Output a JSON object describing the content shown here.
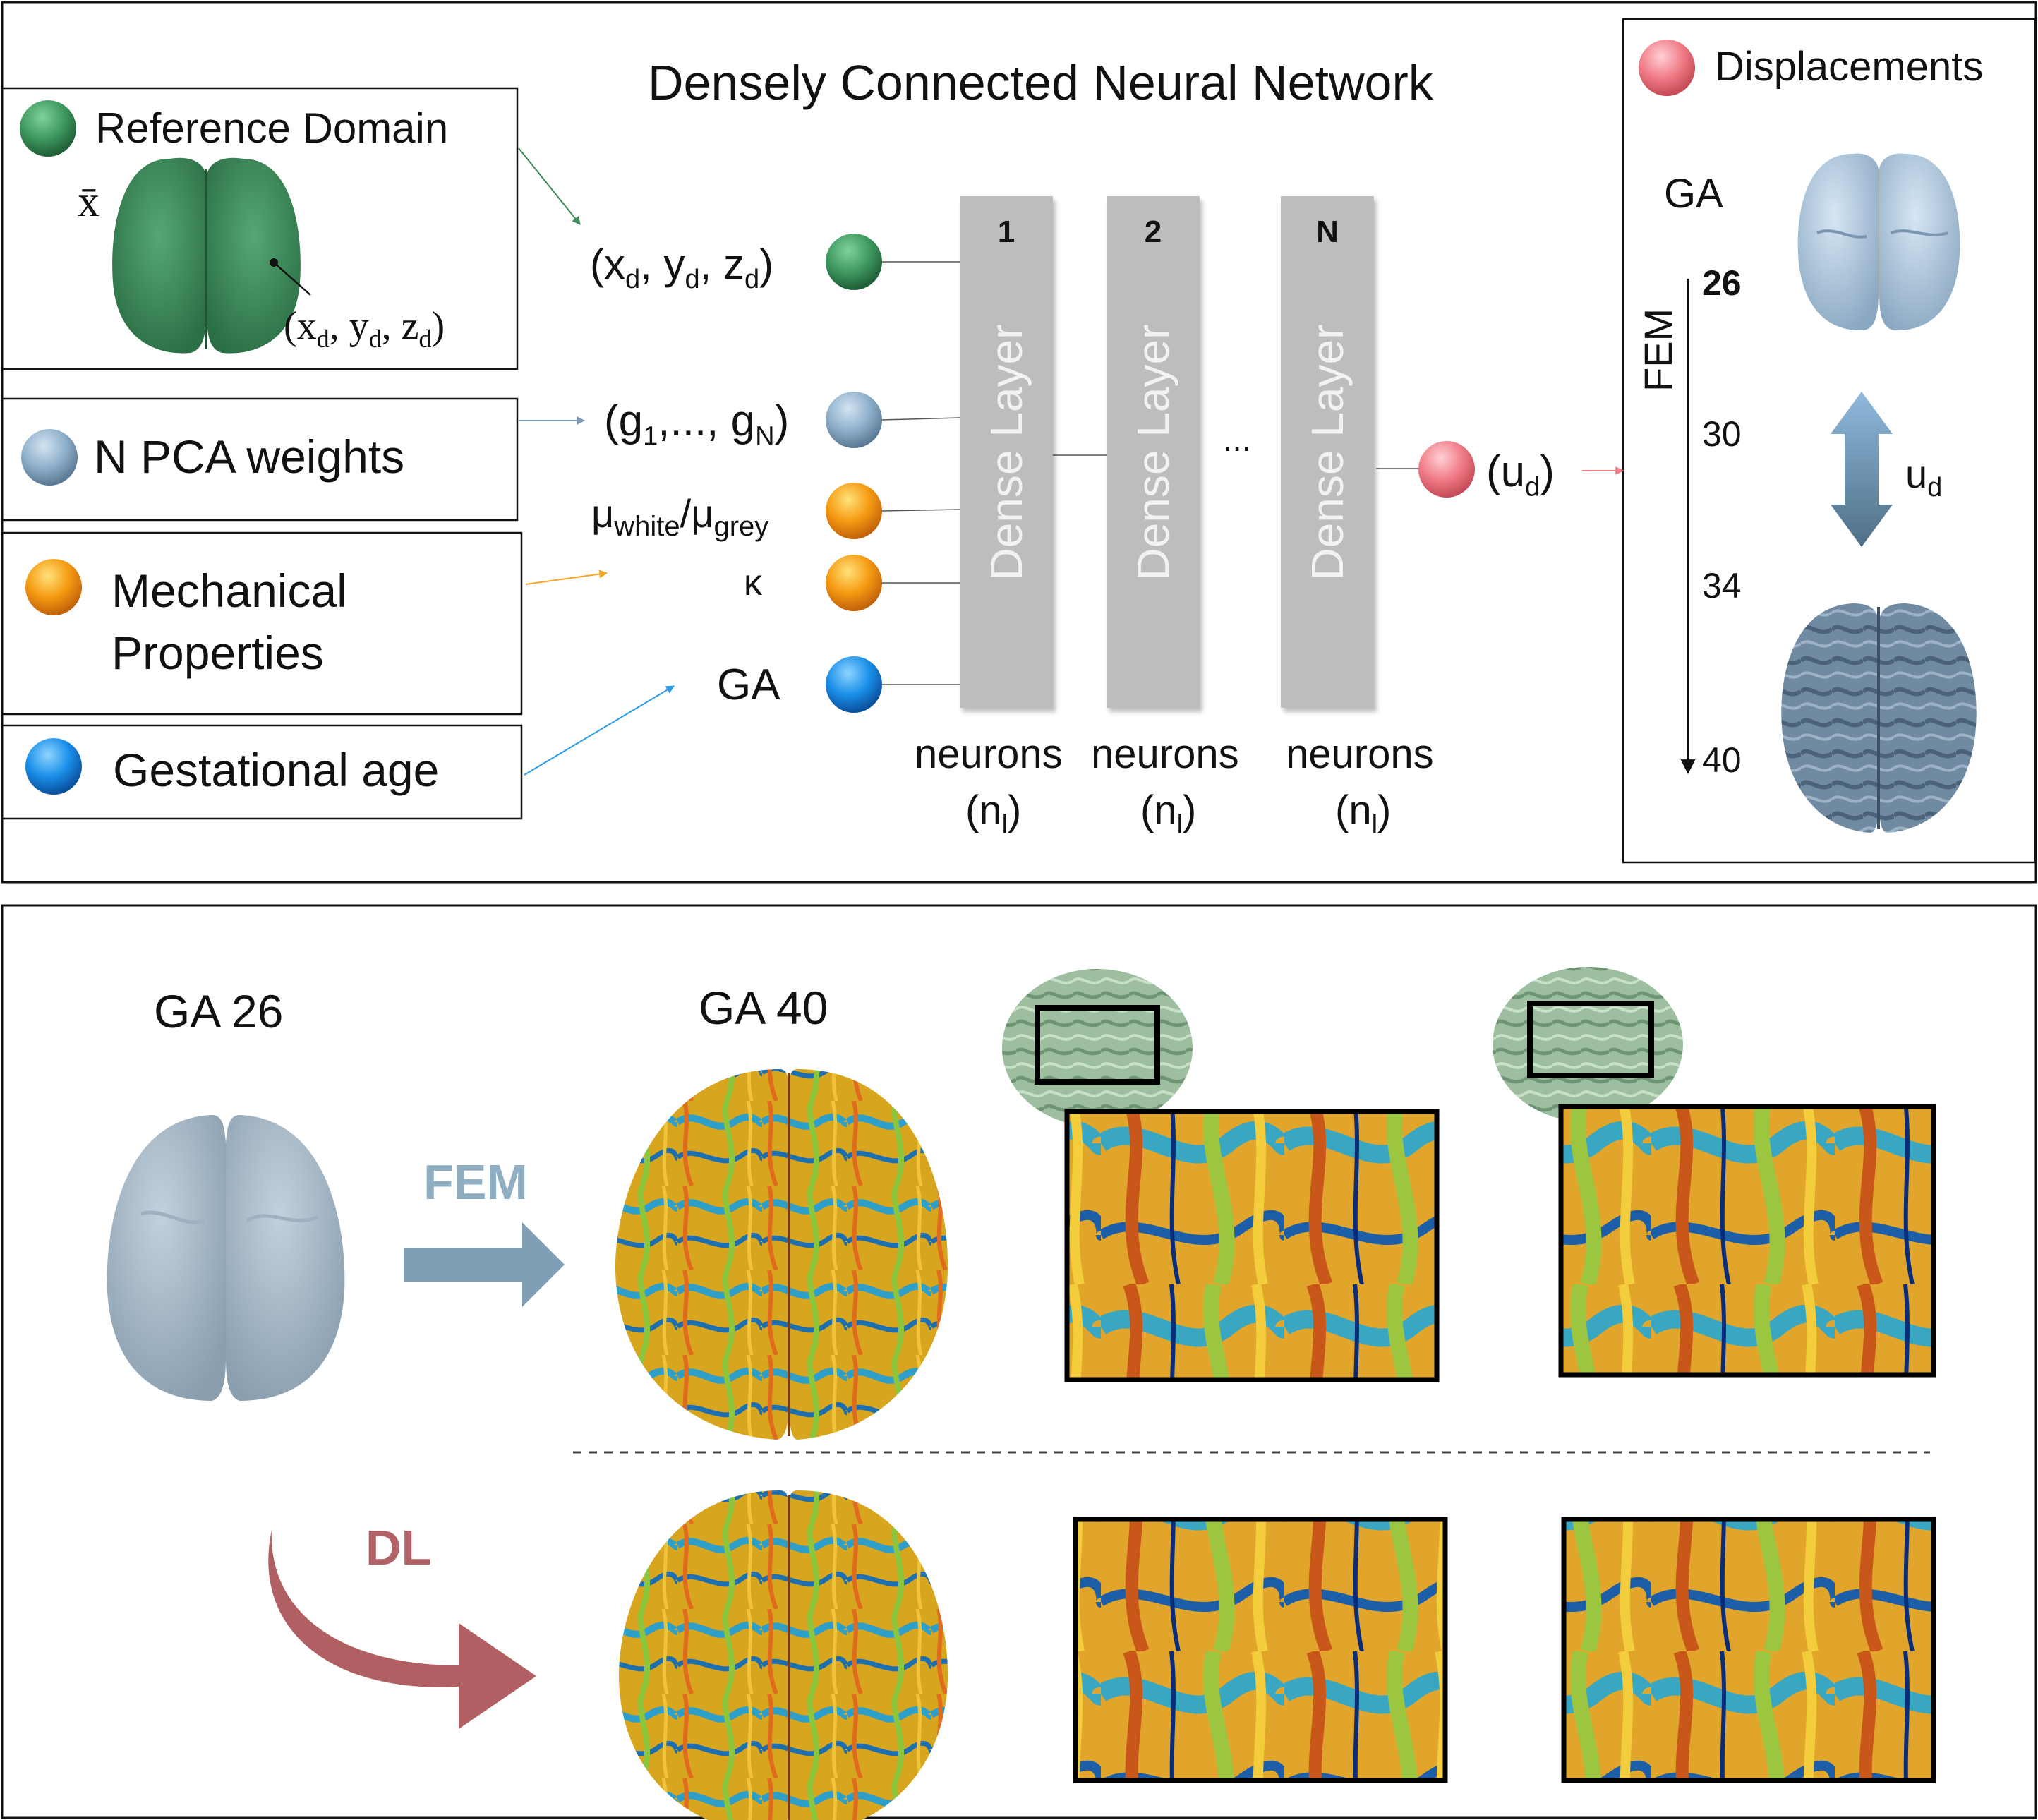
{
  "colors": {
    "green": "#3f9a5f",
    "blue_gray": "#8fb0cc",
    "orange": "#f59a12",
    "blue": "#1a8fe8",
    "red": "#f07c86",
    "fem_arrow": "#7f9fb4",
    "dl_arrow": "#b06062",
    "fem_text": "#8faec2",
    "dl_text": "#b06266",
    "layer_gray": "#bdbdbd"
  },
  "top": {
    "title": "Densely Connected Neural Network",
    "legend": {
      "reference_domain": "Reference Domain",
      "x_bar": "x̄",
      "point_label": "(xd, yd, zd)",
      "pca_weights": "N PCA weights",
      "mechanical_line1": "Mechanical",
      "mechanical_line2": "Properties",
      "gestational_age": "Gestational age"
    },
    "inputs": {
      "coords": "(xd, yd, zd)",
      "pca": "(g1,..., gN)",
      "mu": "μwhite/μgrey",
      "kappa": "κ",
      "ga": "GA"
    },
    "layers": [
      {
        "num": "1",
        "label": "Dense Layer",
        "neurons": "neurons",
        "nl": "(nl)"
      },
      {
        "num": "2",
        "label": "Dense Layer",
        "neurons": "neurons",
        "nl": "(nl)"
      },
      {
        "num": "N",
        "label": "Dense Layer",
        "neurons": "neurons",
        "nl": "(nl)"
      }
    ],
    "ellipsis": "...",
    "output": "(ud)",
    "displacements": {
      "title": "Displacements",
      "ga_label": "GA",
      "fem_label": "FEM",
      "ticks": [
        "26",
        "30",
        "34",
        "40"
      ],
      "ud_label": "ud"
    }
  },
  "bottom": {
    "ga26": "GA 26",
    "ga40": "GA 40",
    "fem": "FEM",
    "dl": "DL"
  }
}
